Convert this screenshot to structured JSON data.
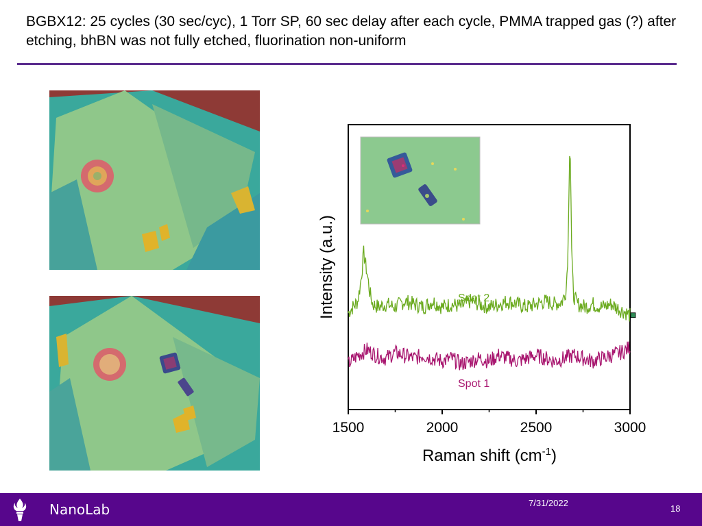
{
  "slide": {
    "title": "BGBX12: 25 cycles (30 sec/cyc), 1 Torr SP, 60 sec delay after each cycle, PMMA trapped gas (?) after etching, bhBN was not fully etched, fluorination non-uniform",
    "accent_color": "#5b2d8e"
  },
  "images": {
    "top": "optical-micrograph-before",
    "bottom": "optical-micrograph-after",
    "inset": "optical-micrograph-inset"
  },
  "chart_data": {
    "type": "line",
    "xlabel": "Raman shift (cm",
    "xlabel_sup": "-1",
    "xlabel_end": ")",
    "ylabel": "Intensity (a.u.)",
    "xlim": [
      1500,
      3000
    ],
    "ylim": [
      0,
      10
    ],
    "x_ticks": [
      1500,
      2000,
      2500,
      3000
    ],
    "x_minor_ticks": [
      1750,
      2250,
      2750
    ],
    "grid": false,
    "legend": "inline labels",
    "series": [
      {
        "name": "Spot 2",
        "color": "#6aaa1e",
        "x": [
          1500,
          1525,
          1550,
          1565,
          1575,
          1582,
          1590,
          1600,
          1615,
          1630,
          1660,
          1700,
          1750,
          1800,
          1850,
          1900,
          1950,
          2000,
          2050,
          2100,
          2150,
          2200,
          2250,
          2300,
          2350,
          2400,
          2450,
          2500,
          2550,
          2600,
          2640,
          2660,
          2670,
          2677,
          2680,
          2684,
          2690,
          2700,
          2720,
          2760,
          2800,
          2850,
          2900,
          2950,
          2980,
          3000
        ],
        "y": [
          3.4,
          3.6,
          3.8,
          4.4,
          5.0,
          5.5,
          5.2,
          4.8,
          4.1,
          3.7,
          3.6,
          3.7,
          3.6,
          3.8,
          3.7,
          3.6,
          3.8,
          3.6,
          3.7,
          3.6,
          3.8,
          3.7,
          3.6,
          3.7,
          3.8,
          3.7,
          3.6,
          3.7,
          3.8,
          3.7,
          3.8,
          4.2,
          5.6,
          8.6,
          9.6,
          8.3,
          5.2,
          4.0,
          3.7,
          3.6,
          3.7,
          3.6,
          3.7,
          3.5,
          3.4,
          3.3
        ]
      },
      {
        "name": "Spot 1",
        "color": "#a8166f",
        "x": [
          1500,
          1550,
          1600,
          1650,
          1700,
          1750,
          1800,
          1850,
          1900,
          1950,
          2000,
          2050,
          2100,
          2150,
          2200,
          2250,
          2300,
          2350,
          2400,
          2450,
          2500,
          2550,
          2600,
          2650,
          2700,
          2750,
          2800,
          2850,
          2900,
          2950,
          2980,
          3000
        ],
        "y": [
          1.6,
          1.9,
          2.1,
          1.9,
          1.8,
          2.0,
          1.9,
          1.8,
          1.9,
          1.8,
          1.7,
          1.8,
          1.6,
          1.7,
          1.8,
          1.7,
          1.9,
          1.8,
          1.7,
          1.8,
          1.9,
          1.8,
          1.7,
          1.8,
          1.9,
          1.8,
          1.7,
          1.8,
          1.9,
          2.0,
          2.1,
          2.2
        ]
      }
    ]
  },
  "footer": {
    "lab": "NanoLab",
    "date": "7/31/2022",
    "page": "18",
    "color": "#57068c"
  }
}
